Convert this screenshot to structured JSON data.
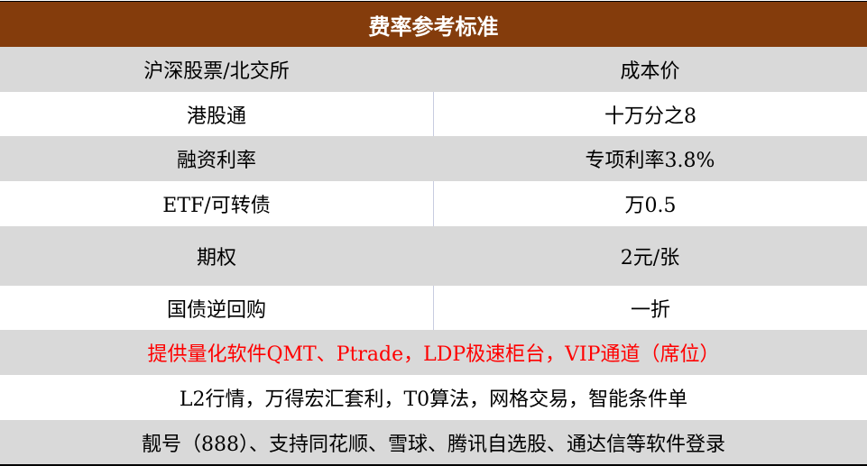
{
  "title": "费率参考标准",
  "rows": [
    {
      "label": "沪深股票/北交所",
      "value": "成本价"
    },
    {
      "label": "港股通",
      "value": "十万分之8"
    },
    {
      "label": "融资利率",
      "value": "专项利率3.8%"
    },
    {
      "label": "ETF/可转债",
      "value": "万0.5"
    },
    {
      "label": "期权",
      "value": "2元/张"
    },
    {
      "label": "国债逆回购",
      "value": "一折"
    }
  ],
  "notes": [
    "提供量化软件QMT、Ptrade，LDP极速柜台，VIP通道（席位）",
    "L2行情，万得宏汇套利，T0算法，网格交易，智能条件单",
    "靓号（888）、支持同花顺、雪球、腾讯自选股、通达信等软件登录"
  ],
  "colors": {
    "header_bg": "#843c0c",
    "row_gray": "#d9d9d9",
    "highlight_text": "#ff0000"
  }
}
